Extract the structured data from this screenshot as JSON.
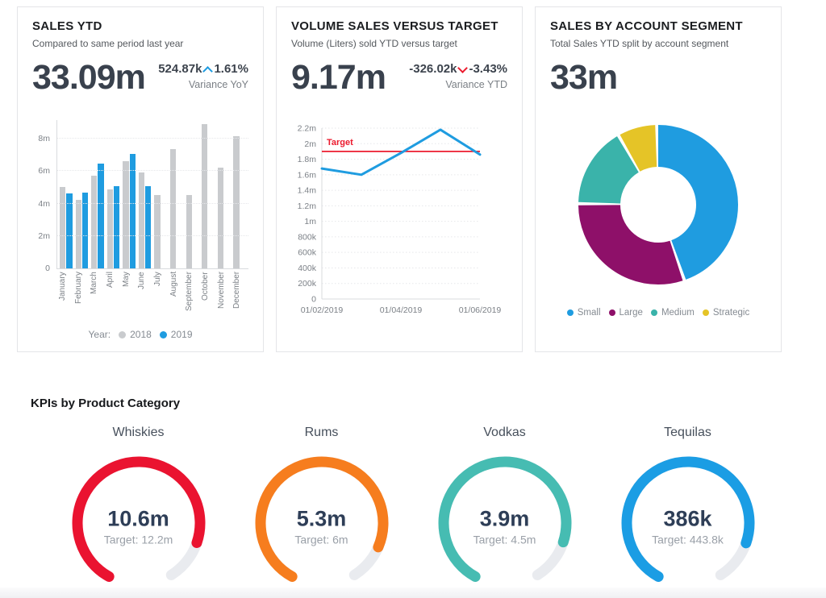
{
  "cards": {
    "sales_ytd": {
      "title": "SALES YTD",
      "subtitle": "Compared to same period last year",
      "value": "33.09m",
      "variance_value": "524.87k",
      "variance_pct": "1.61%",
      "variance_dir": "up",
      "variance_label": "Variance YoY"
    },
    "volume_vs_target": {
      "title": "VOLUME SALES VERSUS TARGET",
      "subtitle": "Volume (Liters) sold YTD versus target",
      "value": "9.17m",
      "variance_value": "-326.02k",
      "variance_pct": "-3.43%",
      "variance_dir": "down",
      "variance_label": "Variance YTD"
    },
    "sales_by_segment": {
      "title": "SALES BY ACCOUNT SEGMENT",
      "subtitle": "Total Sales YTD split by account segment",
      "value": "33m"
    }
  },
  "kpi_section": {
    "title": "KPIs by Product Category"
  },
  "colors": {
    "blue": "#1f9ce0",
    "gray_bar": "#c9cbce",
    "red": "#ec1b2e",
    "orange": "#f5821f",
    "teal": "#41b7ae",
    "purple": "#8e1069",
    "yellow": "#e2c12f",
    "up_caret": "#1f9ce0",
    "down_caret": "#ec1b2e"
  },
  "chart_data": [
    {
      "type": "bar",
      "title": "Sales YTD by month, 2018 vs 2019",
      "categories": [
        "January",
        "February",
        "March",
        "April",
        "May",
        "June",
        "July",
        "August",
        "September",
        "October",
        "November",
        "December"
      ],
      "series": [
        {
          "name": "2018",
          "color": "#c9cbce",
          "values": [
            5.0,
            4.25,
            5.7,
            4.85,
            6.6,
            5.9,
            4.55,
            7.35,
            4.55,
            8.9,
            6.2,
            8.15
          ]
        },
        {
          "name": "2019",
          "color": "#1f9ce0",
          "values": [
            4.65,
            4.7,
            6.45,
            5.05,
            7.05,
            5.05,
            null,
            null,
            null,
            null,
            null,
            null
          ]
        }
      ],
      "unit": "millions",
      "ylim": [
        0,
        9.2
      ],
      "yticks": [
        {
          "value": 0,
          "label": "0"
        },
        {
          "value": 2,
          "label": "2m"
        },
        {
          "value": 4,
          "label": "4m"
        },
        {
          "value": 6,
          "label": "6m"
        },
        {
          "value": 8,
          "label": "8m"
        }
      ],
      "grid": true,
      "legend_prefix": "Year:",
      "legend_position": "bottom"
    },
    {
      "type": "line",
      "title": "Volume sales versus target",
      "x": [
        "01/02/2019",
        "01/03/2019",
        "01/04/2019",
        "01/05/2019",
        "01/06/2019"
      ],
      "series": [
        {
          "name": "Volume",
          "color": "#1f9ce0",
          "values": [
            1680000,
            1600000,
            1880000,
            2180000,
            1860000
          ]
        }
      ],
      "target": {
        "value": 1900000,
        "label": "Target",
        "color": "#ec1b2e"
      },
      "ylim": [
        0,
        2200000
      ],
      "yticks": [
        {
          "value": 0,
          "label": "0"
        },
        {
          "value": 200000,
          "label": "200k"
        },
        {
          "value": 400000,
          "label": "400k"
        },
        {
          "value": 600000,
          "label": "600k"
        },
        {
          "value": 800000,
          "label": "800k"
        },
        {
          "value": 1000000,
          "label": "1m"
        },
        {
          "value": 1200000,
          "label": "1.2m"
        },
        {
          "value": 1400000,
          "label": "1.4m"
        },
        {
          "value": 1600000,
          "label": "1.6m"
        },
        {
          "value": 1800000,
          "label": "1.8m"
        },
        {
          "value": 2000000,
          "label": "2m"
        },
        {
          "value": 2200000,
          "label": "2.2m"
        }
      ],
      "xticks": [
        {
          "index": 0,
          "label": "01/02/2019"
        },
        {
          "index": 2,
          "label": "01/04/2019"
        },
        {
          "index": 4,
          "label": "01/06/2019"
        }
      ],
      "grid": true
    },
    {
      "type": "pie",
      "title": "Sales by account segment (donut)",
      "labels": [
        "Small",
        "Large",
        "Medium",
        "Strategic"
      ],
      "values_pct": [
        45,
        30.5,
        16.5,
        8
      ],
      "colors": [
        "#1f9ce0",
        "#8e1069",
        "#3ab3aa",
        "#e5c427"
      ],
      "total_label": "33m",
      "legend_position": "bottom"
    },
    {
      "type": "gauge",
      "title": "KPIs by Product Category",
      "items": [
        {
          "name": "Whiskies",
          "value": 10.6,
          "target": 12.2,
          "value_label": "10.6m",
          "target_label": "Target: 12.2m",
          "color": "#ea1330"
        },
        {
          "name": "Rums",
          "value": 5.3,
          "target": 6,
          "value_label": "5.3m",
          "target_label": "Target: 6m",
          "color": "#f67d1e"
        },
        {
          "name": "Vodkas",
          "value": 3.9,
          "target": 4.5,
          "value_label": "3.9m",
          "target_label": "Target: 4.5m",
          "color": "#46bcb2"
        },
        {
          "name": "Tequilas",
          "value": 386,
          "target": 443.8,
          "value_label": "386k",
          "target_label": "Target: 443.8k",
          "color": "#1b9de4"
        }
      ]
    }
  ]
}
